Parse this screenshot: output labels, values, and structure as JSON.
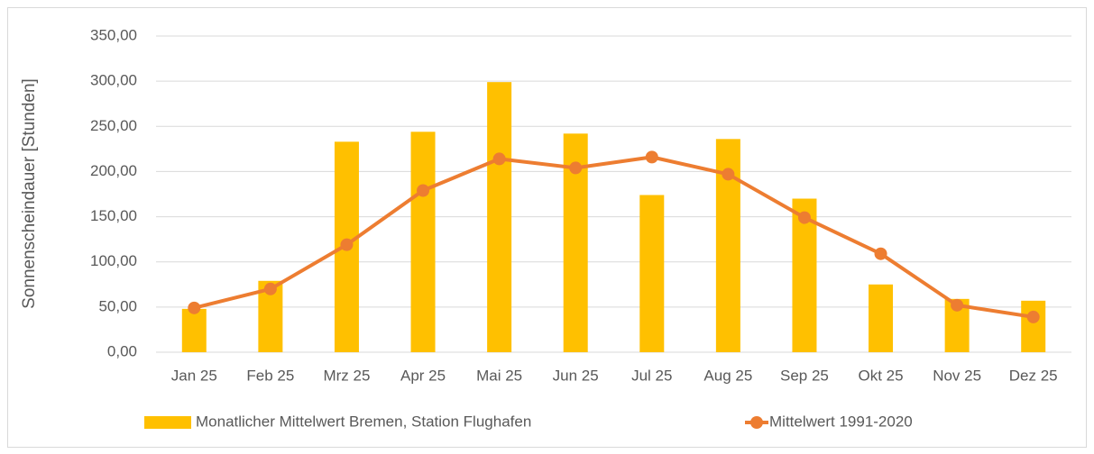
{
  "chart_data": {
    "type": "bar",
    "y_label": "Sonnenscheindauer [Stunden]",
    "categories": [
      "Jan 25",
      "Feb 25",
      "Mrz 25",
      "Apr 25",
      "Mai 25",
      "Jun 25",
      "Jul 25",
      "Aug 25",
      "Sep 25",
      "Okt 25",
      "Nov 25",
      "Dez 25"
    ],
    "series": [
      {
        "name": "Monatlicher Mittelwert Bremen, Station Flughafen",
        "type": "bar",
        "color": "#ffc000",
        "values": [
          48,
          79,
          233,
          244,
          299,
          242,
          174,
          236,
          170,
          75,
          59,
          57
        ]
      },
      {
        "name": "Mittelwert 1991-2020",
        "type": "line",
        "color": "#ed7d31",
        "values": [
          49,
          70,
          119,
          179,
          214,
          204,
          216,
          197,
          149,
          109,
          52,
          39
        ]
      }
    ],
    "ylim": [
      0,
      350
    ],
    "yticks": [
      {
        "value": 0,
        "label": "0,00"
      },
      {
        "value": 50,
        "label": "50,00"
      },
      {
        "value": 100,
        "label": "100,00"
      },
      {
        "value": 150,
        "label": "150,00"
      },
      {
        "value": 200,
        "label": "200,00"
      },
      {
        "value": 250,
        "label": "250,00"
      },
      {
        "value": 300,
        "label": "300,00"
      },
      {
        "value": 350,
        "label": "350,00"
      }
    ],
    "grid": true,
    "legend": "bottom"
  }
}
